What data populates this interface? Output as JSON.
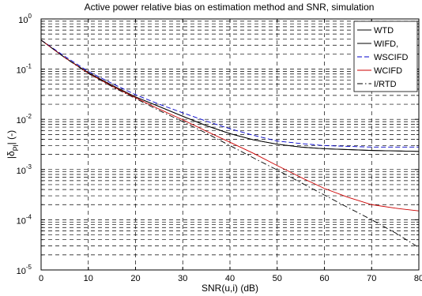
{
  "chart_data": {
    "type": "line",
    "title": "Active power relative bias on estimation method and SNR, simulation",
    "xlabel": "SNR(u,i) (dB)",
    "ylabel": "|δPl| (-)",
    "ylabel_main": "|δ",
    "ylabel_sub": "Pl",
    "ylabel_tail": "| (-)",
    "xscale": "linear",
    "yscale": "log",
    "xlim": [
      0,
      80
    ],
    "ylim": [
      1e-05,
      1
    ],
    "x_ticks": [
      "0",
      "10",
      "20",
      "30",
      "40",
      "50",
      "60",
      "70",
      "80"
    ],
    "y_ticks": [
      {
        "base": "10",
        "exp": "0"
      },
      {
        "base": "10",
        "exp": "-1"
      },
      {
        "base": "10",
        "exp": "-2"
      },
      {
        "base": "10",
        "exp": "-3"
      },
      {
        "base": "10",
        "exp": "-4"
      },
      {
        "base": "10",
        "exp": "-5"
      }
    ],
    "grid": true,
    "legend_position": "top-right",
    "series": [
      {
        "name": "WTD",
        "color": "#000000",
        "dash": "solid",
        "x": [
          0,
          5,
          10,
          15,
          20,
          25,
          30,
          35,
          40,
          45,
          50,
          55,
          60,
          65,
          70,
          75,
          80
        ],
        "y": [
          0.38,
          0.17,
          0.085,
          0.048,
          0.028,
          0.018,
          0.0115,
          0.0075,
          0.0052,
          0.0039,
          0.0032,
          0.0028,
          0.0026,
          0.0025,
          0.0024,
          0.00235,
          0.0023
        ]
      },
      {
        "name": "WIFD,",
        "color": "#000000",
        "dash": "solid",
        "x": [
          0,
          5,
          10,
          15,
          20,
          25,
          30,
          35,
          40,
          45,
          50,
          55,
          60,
          65,
          70,
          75,
          80
        ],
        "y": [
          0.38,
          0.17,
          0.085,
          0.048,
          0.028,
          0.018,
          0.0115,
          0.0075,
          0.0052,
          0.0039,
          0.0032,
          0.0028,
          0.0026,
          0.0025,
          0.0024,
          0.00235,
          0.0023
        ]
      },
      {
        "name": "WSCIFD",
        "color": "#0000cc",
        "dash": "dashed",
        "x": [
          0,
          5,
          10,
          15,
          20,
          25,
          30,
          35,
          40,
          45,
          50,
          55,
          60,
          65,
          70,
          75,
          80
        ],
        "y": [
          0.38,
          0.18,
          0.09,
          0.052,
          0.031,
          0.02,
          0.0135,
          0.0092,
          0.0065,
          0.0048,
          0.0037,
          0.0033,
          0.003,
          0.0029,
          0.0028,
          0.0028,
          0.0028
        ]
      },
      {
        "name": "WCIFD",
        "color": "#cc0000",
        "dash": "solid",
        "x": [
          0,
          5,
          10,
          15,
          20,
          25,
          30,
          35,
          40,
          45,
          50,
          55,
          60,
          65,
          70,
          75,
          80
        ],
        "y": [
          0.38,
          0.17,
          0.083,
          0.046,
          0.027,
          0.016,
          0.0098,
          0.0058,
          0.0035,
          0.0021,
          0.0012,
          0.0007,
          0.00042,
          0.00028,
          0.0002,
          0.00017,
          0.00015
        ]
      },
      {
        "name": "I/RTD",
        "color": "#000000",
        "dash": "dashdot",
        "x": [
          0,
          5,
          10,
          15,
          20,
          25,
          30,
          35,
          40,
          45,
          50,
          55,
          60,
          65,
          70,
          75,
          80
        ],
        "y": [
          0.38,
          0.17,
          0.082,
          0.045,
          0.026,
          0.015,
          0.009,
          0.0053,
          0.003,
          0.0017,
          0.00098,
          0.00055,
          0.00031,
          0.000175,
          0.0001,
          5.5e-05,
          2.8e-05
        ]
      }
    ]
  }
}
